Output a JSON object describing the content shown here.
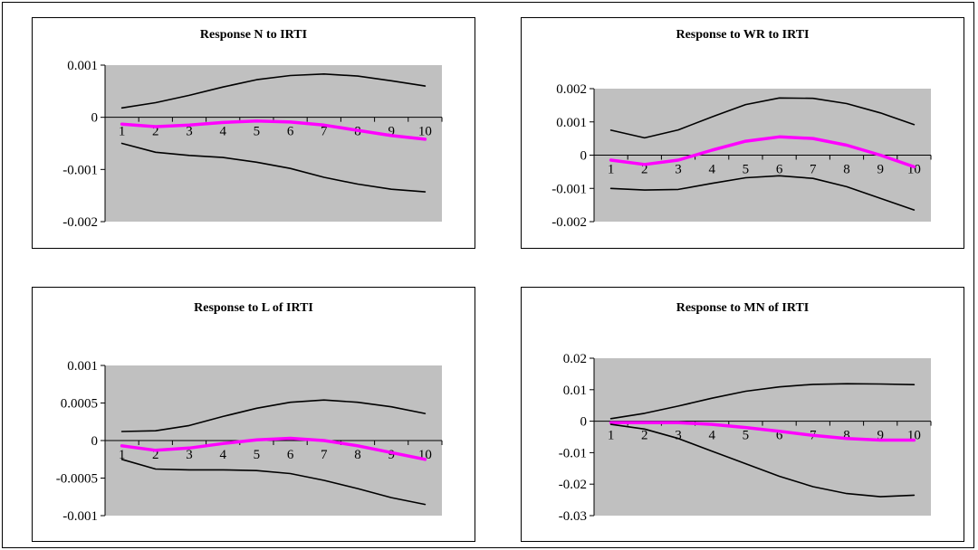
{
  "chart_data": [
    {
      "type": "line",
      "title": "Response N to IRTI",
      "x": [
        1,
        2,
        3,
        4,
        5,
        6,
        7,
        8,
        9,
        10
      ],
      "ylim": [
        -0.002,
        0.001
      ],
      "yticks": [
        "0.001",
        "0",
        "-0.001",
        "-0.002"
      ],
      "ytick_values": [
        0.001,
        0,
        -0.001,
        -0.002
      ],
      "xticks": [
        "1",
        "2",
        "3",
        "4",
        "5",
        "6",
        "7",
        "8",
        "9",
        "10"
      ],
      "plot_background": "#c0c0c0",
      "series": [
        {
          "color": "#000000",
          "values": [
            0.00018,
            0.00028,
            0.00042,
            0.00058,
            0.00072,
            0.0008,
            0.00083,
            0.00079,
            0.0007,
            0.0006
          ]
        },
        {
          "color": "#ff00ff",
          "values": [
            -0.00013,
            -0.00018,
            -0.00015,
            -0.0001,
            -7e-05,
            -9e-05,
            -0.00015,
            -0.00025,
            -0.00035,
            -0.00042
          ]
        },
        {
          "color": "#000000",
          "values": [
            -0.0005,
            -0.00067,
            -0.00073,
            -0.00077,
            -0.00086,
            -0.00098,
            -0.00115,
            -0.00128,
            -0.00138,
            -0.00143
          ]
        }
      ]
    },
    {
      "type": "line",
      "title": "Response to WR to IRTI",
      "x": [
        1,
        2,
        3,
        4,
        5,
        6,
        7,
        8,
        9,
        10
      ],
      "ylim": [
        -0.002,
        0.002
      ],
      "yticks": [
        "0.002",
        "0.001",
        "0",
        "-0.001",
        "-0.002"
      ],
      "ytick_values": [
        0.002,
        0.001,
        0,
        -0.001,
        -0.002
      ],
      "xticks": [
        "1",
        "2",
        "3",
        "4",
        "5",
        "6",
        "7",
        "8",
        "9",
        "10"
      ],
      "plot_background": "#c0c0c0",
      "series": [
        {
          "color": "#000000",
          "values": [
            0.00075,
            0.00052,
            0.00076,
            0.00115,
            0.00152,
            0.00172,
            0.00171,
            0.00155,
            0.00127,
            0.00092
          ]
        },
        {
          "color": "#ff00ff",
          "values": [
            -0.00015,
            -0.00028,
            -0.00015,
            0.00015,
            0.00042,
            0.00055,
            0.0005,
            0.0003,
            0.0,
            -0.00035
          ]
        },
        {
          "color": "#000000",
          "values": [
            -0.001,
            -0.00105,
            -0.00103,
            -0.00085,
            -0.00068,
            -0.00062,
            -0.0007,
            -0.00095,
            -0.0013,
            -0.00165
          ]
        }
      ]
    },
    {
      "type": "line",
      "title": "Response to L of IRTI",
      "x": [
        1,
        2,
        3,
        4,
        5,
        6,
        7,
        8,
        9,
        10
      ],
      "ylim": [
        -0.001,
        0.001
      ],
      "yticks": [
        "0.001",
        "0.0005",
        "0",
        "-0.0005",
        "-0.001"
      ],
      "ytick_values": [
        0.001,
        0.0005,
        0,
        -0.0005,
        -0.001
      ],
      "xticks": [
        "1",
        "2",
        "3",
        "4",
        "5",
        "6",
        "7",
        "8",
        "9",
        "10"
      ],
      "plot_background": "#c0c0c0",
      "series": [
        {
          "color": "#000000",
          "values": [
            0.00012,
            0.00013,
            0.0002,
            0.00032,
            0.00043,
            0.00051,
            0.00054,
            0.00051,
            0.00045,
            0.00036
          ]
        },
        {
          "color": "#ff00ff",
          "values": [
            -7e-05,
            -0.00013,
            -0.0001,
            -4e-05,
            1e-05,
            3e-05,
            0.0,
            -7e-05,
            -0.00016,
            -0.00025
          ]
        },
        {
          "color": "#000000",
          "values": [
            -0.00025,
            -0.00038,
            -0.00039,
            -0.00039,
            -0.0004,
            -0.00044,
            -0.00053,
            -0.00064,
            -0.00076,
            -0.00085
          ]
        }
      ]
    },
    {
      "type": "line",
      "title": "Response to MN of IRTI",
      "x": [
        1,
        2,
        3,
        4,
        5,
        6,
        7,
        8,
        9,
        10
      ],
      "ylim": [
        -0.03,
        0.02
      ],
      "yticks": [
        "0.02",
        "0.01",
        "0",
        "-0.01",
        "-0.02",
        "-0.03"
      ],
      "ytick_values": [
        0.02,
        0.01,
        0,
        -0.01,
        -0.02,
        -0.03
      ],
      "xticks": [
        "1",
        "2",
        "3",
        "4",
        "5",
        "6",
        "7",
        "8",
        "9",
        "10"
      ],
      "plot_background": "#c0c0c0",
      "series": [
        {
          "color": "#000000",
          "values": [
            0.0008,
            0.0025,
            0.0048,
            0.0073,
            0.0095,
            0.0109,
            0.0117,
            0.0119,
            0.0118,
            0.0116
          ]
        },
        {
          "color": "#ff00ff",
          "values": [
            -0.0005,
            -0.0005,
            -0.0005,
            -0.001,
            -0.002,
            -0.0032,
            -0.0045,
            -0.0055,
            -0.006,
            -0.006
          ]
        },
        {
          "color": "#000000",
          "values": [
            -0.001,
            -0.0025,
            -0.0055,
            -0.0095,
            -0.0135,
            -0.0175,
            -0.0208,
            -0.023,
            -0.024,
            -0.0235
          ]
        }
      ]
    }
  ]
}
